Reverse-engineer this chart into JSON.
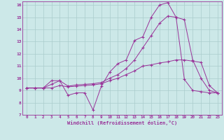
{
  "xlabel": "Windchill (Refroidissement éolien,°C)",
  "bg_color": "#cce8e8",
  "grid_color": "#aacccc",
  "line_color": "#993399",
  "xlim": [
    -0.5,
    23.5
  ],
  "ylim": [
    7,
    16.3
  ],
  "xticks": [
    0,
    1,
    2,
    3,
    4,
    5,
    6,
    7,
    8,
    9,
    10,
    11,
    12,
    13,
    14,
    15,
    16,
    17,
    18,
    19,
    20,
    21,
    22,
    23
  ],
  "yticks": [
    7,
    8,
    9,
    10,
    11,
    12,
    13,
    14,
    15,
    16
  ],
  "series": [
    [
      9.2,
      9.2,
      9.2,
      9.5,
      9.8,
      8.6,
      8.8,
      8.8,
      7.4,
      9.35,
      10.5,
      11.2,
      11.5,
      13.1,
      13.4,
      15.0,
      16.0,
      16.2,
      15.0,
      9.9,
      9.0,
      8.9,
      8.8,
      8.8
    ],
    [
      9.2,
      9.2,
      9.2,
      9.2,
      9.4,
      9.3,
      9.35,
      9.4,
      9.45,
      9.55,
      9.8,
      10.0,
      10.3,
      10.6,
      11.0,
      11.1,
      11.25,
      11.35,
      11.5,
      11.5,
      11.4,
      11.3,
      9.4,
      8.8
    ],
    [
      9.2,
      9.2,
      9.2,
      9.8,
      9.8,
      9.35,
      9.45,
      9.5,
      9.55,
      9.65,
      10.0,
      10.3,
      10.8,
      11.5,
      12.5,
      13.5,
      14.5,
      15.1,
      15.0,
      14.8,
      11.5,
      10.0,
      9.0,
      8.8
    ]
  ]
}
